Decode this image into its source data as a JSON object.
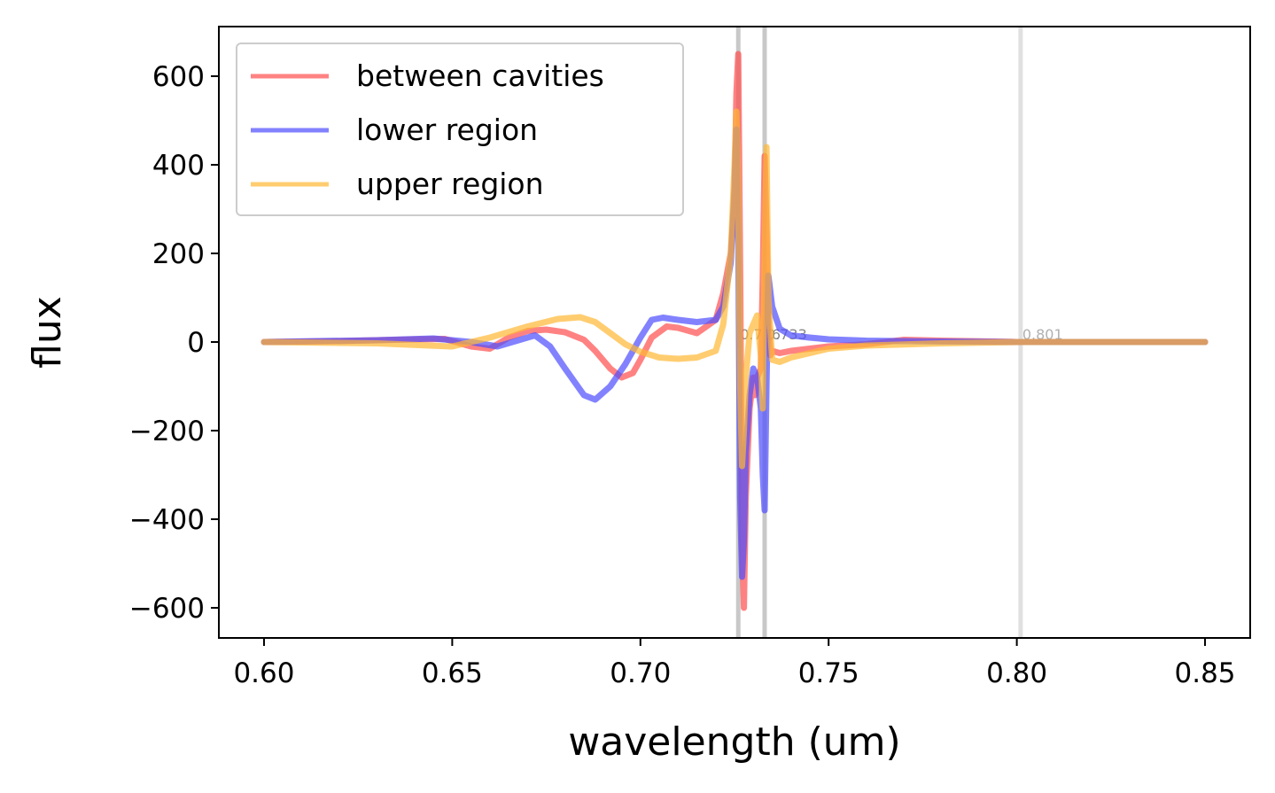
{
  "chart_data": {
    "type": "line",
    "title": "",
    "xlabel": "wavelength (um)",
    "ylabel": "flux",
    "xlim": [
      0.588,
      0.862
    ],
    "ylim": [
      -668,
      712
    ],
    "xticks": [
      0.6,
      0.65,
      0.7,
      0.75,
      0.8,
      0.85
    ],
    "xtick_labels": [
      "0.60",
      "0.65",
      "0.70",
      "0.75",
      "0.80",
      "0.85"
    ],
    "yticks": [
      600,
      400,
      200,
      0,
      -200,
      -400,
      -600
    ],
    "ytick_labels": [
      "600",
      "400",
      "200",
      "0",
      "−200",
      "−400",
      "−600"
    ],
    "grid": false,
    "legend_placement": "top-left",
    "vertical_lines": [
      {
        "x": 0.726,
        "label": "0.726",
        "color": "#c8c8c8"
      },
      {
        "x": 0.733,
        "label": "0.733",
        "color": "#c8c8c8"
      },
      {
        "x": 0.801,
        "label": "0.801",
        "color": "#e0e0e0"
      }
    ],
    "series": [
      {
        "name": "between cavities",
        "color": "#ff4d4d",
        "x": [
          0.6,
          0.62,
          0.64,
          0.648,
          0.655,
          0.66,
          0.665,
          0.67,
          0.675,
          0.68,
          0.685,
          0.688,
          0.692,
          0.695,
          0.698,
          0.7,
          0.703,
          0.707,
          0.71,
          0.715,
          0.72,
          0.722,
          0.724,
          0.725,
          0.7255,
          0.726,
          0.7265,
          0.727,
          0.7275,
          0.728,
          0.729,
          0.73,
          0.7305,
          0.731,
          0.732,
          0.7325,
          0.733,
          0.7335,
          0.734,
          0.7345,
          0.735,
          0.737,
          0.74,
          0.745,
          0.75,
          0.76,
          0.77,
          0.78,
          0.8,
          0.82,
          0.85
        ],
        "y": [
          0,
          2,
          6,
          7,
          -10,
          -15,
          10,
          25,
          28,
          22,
          5,
          -20,
          -60,
          -80,
          -70,
          -40,
          10,
          35,
          32,
          20,
          50,
          110,
          200,
          320,
          560,
          650,
          150,
          -450,
          -600,
          -350,
          -150,
          -80,
          -120,
          -80,
          -60,
          150,
          420,
          250,
          50,
          -30,
          -20,
          -25,
          -20,
          -15,
          -10,
          -5,
          5,
          3,
          0,
          0,
          0
        ]
      },
      {
        "name": "lower region",
        "color": "#4d4dff",
        "x": [
          0.6,
          0.63,
          0.645,
          0.655,
          0.662,
          0.668,
          0.672,
          0.676,
          0.68,
          0.685,
          0.688,
          0.692,
          0.696,
          0.7,
          0.703,
          0.706,
          0.71,
          0.715,
          0.72,
          0.722,
          0.724,
          0.725,
          0.7255,
          0.726,
          0.7265,
          0.727,
          0.7275,
          0.728,
          0.729,
          0.73,
          0.731,
          0.732,
          0.7325,
          0.733,
          0.7335,
          0.734,
          0.735,
          0.737,
          0.74,
          0.745,
          0.75,
          0.76,
          0.77,
          0.78,
          0.8,
          0.82,
          0.85
        ],
        "y": [
          0,
          4,
          8,
          0,
          -10,
          5,
          15,
          -10,
          -60,
          -120,
          -130,
          -100,
          -50,
          10,
          50,
          55,
          50,
          45,
          50,
          80,
          180,
          350,
          480,
          250,
          -350,
          -530,
          -450,
          -250,
          -120,
          -60,
          -80,
          -150,
          -300,
          -380,
          -100,
          150,
          80,
          30,
          15,
          10,
          6,
          3,
          2,
          1,
          0,
          0,
          0
        ]
      },
      {
        "name": "upper region",
        "color": "#ffb833",
        "x": [
          0.6,
          0.63,
          0.65,
          0.66,
          0.67,
          0.678,
          0.684,
          0.688,
          0.692,
          0.696,
          0.7,
          0.705,
          0.71,
          0.715,
          0.72,
          0.722,
          0.724,
          0.725,
          0.7255,
          0.726,
          0.7265,
          0.727,
          0.7275,
          0.728,
          0.729,
          0.73,
          0.731,
          0.732,
          0.7325,
          0.733,
          0.7335,
          0.734,
          0.735,
          0.737,
          0.74,
          0.745,
          0.75,
          0.76,
          0.78,
          0.8,
          0.82,
          0.85
        ],
        "y": [
          0,
          -3,
          -10,
          10,
          35,
          52,
          56,
          45,
          20,
          -5,
          -22,
          -35,
          -38,
          -35,
          -20,
          40,
          200,
          400,
          520,
          350,
          -100,
          -280,
          -200,
          -80,
          20,
          40,
          60,
          -30,
          -150,
          200,
          440,
          100,
          -40,
          -45,
          -35,
          -25,
          -15,
          -8,
          -3,
          0,
          0,
          0
        ]
      }
    ]
  }
}
